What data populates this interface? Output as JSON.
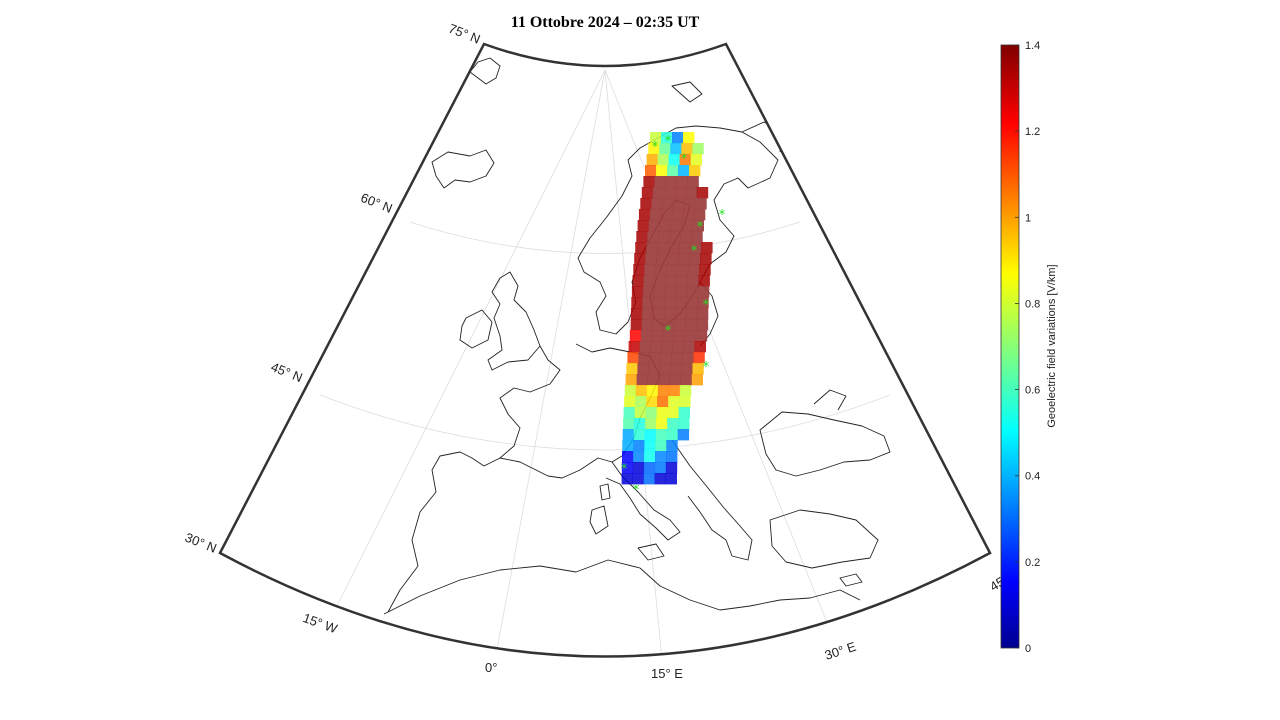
{
  "title": "11 Ottobre 2024 – 02:35 UT",
  "lat_labels": [
    "75° N",
    "60° N",
    "45° N",
    "30° N"
  ],
  "lon_labels": [
    "15° W",
    "0°",
    "15° E",
    "30° E",
    "45"
  ],
  "colorbar": {
    "label": "Geoelectric field variations [V/km]",
    "ticks": [
      "1.4",
      "1.2",
      "1",
      "0.8",
      "0.6",
      "0.4",
      "0.2",
      "0"
    ],
    "colormap": "jet",
    "range": [
      0,
      1.4
    ]
  },
  "overlay": {
    "saturated_color": "#9b3c3c",
    "station_marker_color": "#22dd22",
    "station_marker": "asterisk"
  },
  "colors": {
    "frame": "#333333",
    "coast": "#222222",
    "grid": "#dddddd"
  }
}
